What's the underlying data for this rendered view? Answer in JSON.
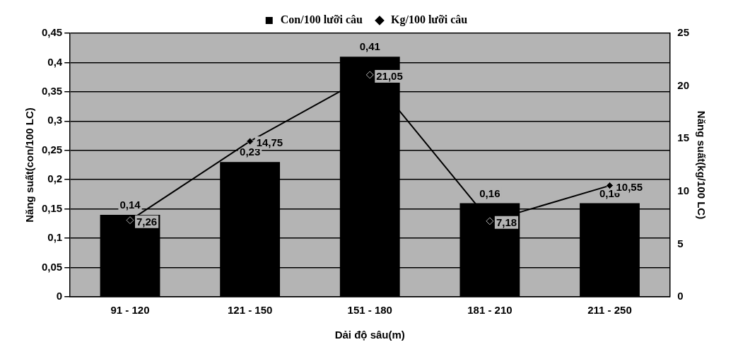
{
  "chart_data": {
    "type": "bar",
    "xlabel": "Dải độ sâu(m)",
    "ylabel": "Năng suất(con/100 LC)",
    "y2label": "Năng suất(kg/100 LC)",
    "categories": [
      "91 - 120",
      "121 - 150",
      "151 - 180",
      "181 - 210",
      "211 - 250"
    ],
    "series": [
      {
        "name": "Con/100 lưỡi câu",
        "type": "bar",
        "color": "#000000",
        "values": [
          0.14,
          0.23,
          0.41,
          0.16,
          0.16
        ],
        "value_labels": [
          "0,14",
          "0,23",
          "0,41",
          "0,16",
          "0,16"
        ]
      },
      {
        "name": "Kg/100 lưỡi câu",
        "type": "line",
        "axis": "y2",
        "color": "#000000",
        "marker": "diamond",
        "values": [
          7.26,
          14.75,
          21.05,
          7.18,
          10.55
        ],
        "value_labels": [
          "7,26",
          "14,75",
          "21,05",
          "7,18",
          "10,55"
        ]
      }
    ],
    "ylim": [
      0,
      0.45
    ],
    "yticks": [
      {
        "value": 0,
        "label": "0"
      },
      {
        "value": 0.05,
        "label": "0,05"
      },
      {
        "value": 0.1,
        "label": "0,1"
      },
      {
        "value": 0.15,
        "label": "0,15"
      },
      {
        "value": 0.2,
        "label": "0,2"
      },
      {
        "value": 0.25,
        "label": "0,25"
      },
      {
        "value": 0.3,
        "label": "0,3"
      },
      {
        "value": 0.35,
        "label": "0,35"
      },
      {
        "value": 0.4,
        "label": "0,4"
      },
      {
        "value": 0.45,
        "label": "0,45"
      }
    ],
    "y2lim": [
      0,
      25
    ],
    "y2ticks": [
      0,
      5,
      10,
      15,
      20,
      25
    ],
    "grid": "y",
    "legend": "top"
  }
}
